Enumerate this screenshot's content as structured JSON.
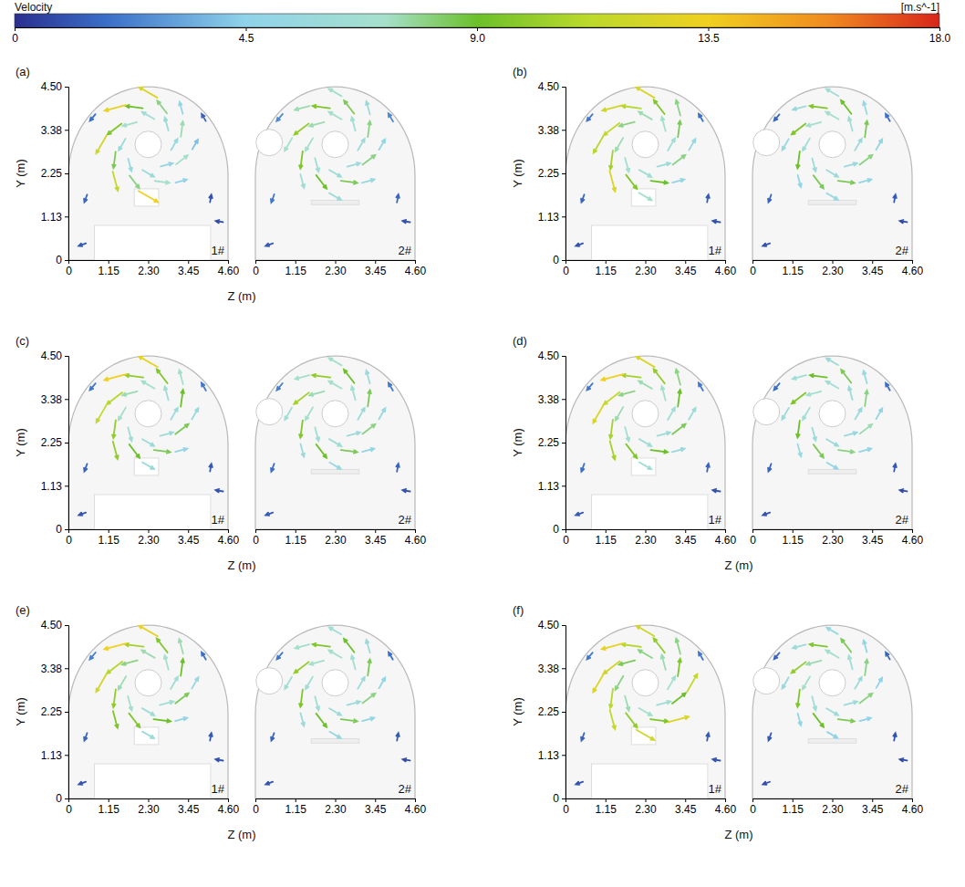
{
  "chart_data": {
    "type": "vector_field",
    "colorbar": {
      "title": "Velocity",
      "unit": "[m.s^-1]",
      "range": [
        0,
        18
      ],
      "ticks": [
        0,
        4.5,
        {
          "value": 9,
          "label": "9.0"
        },
        13.5,
        {
          "value": 18,
          "label": "18.0"
        }
      ]
    },
    "ylabel": "Y (m)",
    "xlim": [
      0,
      4.6
    ],
    "xticks": [
      0,
      1.15,
      {
        "value": 2.3,
        "label": "2.30"
      },
      3.45,
      {
        "value": 4.6,
        "label": "4.60"
      }
    ],
    "ylim": [
      0,
      4.5
    ],
    "yticks": [
      0,
      1.13,
      2.25,
      3.38,
      {
        "value": 4.5,
        "label": "4.50"
      }
    ],
    "z": [
      3.05,
      2.83,
      2.3,
      1.77,
      1.55,
      1.77,
      2.3,
      2.83,
      3.27,
      2.7,
      1.9,
      1.33,
      1.33,
      1.9,
      2.7,
      3.27,
      3.65,
      3.25,
      2.3,
      1.35,
      0.95,
      1.35,
      2.3,
      3.25,
      0.5,
      4.1,
      4.35,
      0.4,
      3.9,
      0.7
    ],
    "y": [
      3.0,
      3.53,
      3.75,
      3.53,
      3.0,
      2.47,
      2.25,
      2.47,
      3.4,
      3.97,
      3.97,
      3.4,
      2.6,
      2.03,
      2.03,
      2.6,
      3.0,
      3.95,
      4.35,
      3.95,
      3.0,
      2.05,
      1.65,
      2.05,
      1.6,
      1.6,
      1.0,
      0.4,
      3.7,
      3.7
    ],
    "direction": [
      60,
      105,
      150,
      195,
      240,
      285,
      330,
      15,
      82.5,
      127.5,
      172.5,
      217.5,
      262.5,
      307.5,
      352.5,
      37.5,
      60,
      105,
      150,
      195,
      240,
      285,
      330,
      15,
      250,
      80,
      170,
      200,
      120,
      230
    ],
    "panels": [
      {
        "label": "(a)",
        "xlabel": "Z (m)",
        "plots": [
          {
            "label": "1#",
            "speed": [
              5.5,
              6.0,
              6.5,
              7.0,
              6.0,
              5.5,
              6.0,
              5.0,
              7.5,
              8.0,
              9.0,
              9.5,
              8.5,
              8.0,
              7.0,
              7.0,
              4.0,
              5.0,
              12.5,
              13.0,
              12.0,
              11.5,
              13.5,
              4.5,
              1.5,
              1.0,
              0.8,
              1.2,
              1.5,
              1.8
            ]
          },
          {
            "label": "2#",
            "speed": [
              6.0,
              6.5,
              7.0,
              7.5,
              7.0,
              6.5,
              6.0,
              6.0,
              8.0,
              8.5,
              9.5,
              10.0,
              9.5,
              9.0,
              8.5,
              8.0,
              5.0,
              6.0,
              7.0,
              7.5,
              7.0,
              6.5,
              6.0,
              5.5,
              2.0,
              1.5,
              1.0,
              1.2,
              2.5,
              2.5
            ]
          }
        ]
      },
      {
        "label": "(b)",
        "plots": [
          {
            "label": "1#",
            "speed": [
              6.5,
              7.0,
              7.5,
              8.0,
              7.5,
              7.0,
              6.5,
              6.0,
              8.5,
              9.5,
              11.0,
              11.5,
              10.5,
              9.5,
              9.0,
              8.0,
              5.5,
              8.0,
              12.5,
              12.0,
              11.0,
              12.5,
              7.0,
              5.0,
              1.5,
              1.2,
              1.0,
              1.0,
              1.8,
              2.0
            ]
          },
          {
            "label": "2#",
            "speed": [
              6.0,
              6.5,
              7.0,
              7.0,
              6.5,
              6.0,
              6.0,
              5.5,
              8.5,
              9.0,
              9.5,
              9.5,
              9.0,
              8.5,
              8.5,
              8.0,
              5.0,
              5.5,
              6.5,
              6.0,
              5.5,
              5.0,
              5.5,
              5.0,
              1.5,
              1.2,
              0.8,
              1.0,
              1.8,
              1.5
            ]
          }
        ]
      },
      {
        "label": "(c)",
        "xlabel": "Z (m)",
        "plots": [
          {
            "label": "1#",
            "speed": [
              6.0,
              6.5,
              7.0,
              7.5,
              7.0,
              6.5,
              6.0,
              6.0,
              9.0,
              9.5,
              10.0,
              11.0,
              10.0,
              9.0,
              8.5,
              8.5,
              5.5,
              7.0,
              13.0,
              13.5,
              11.5,
              10.0,
              6.0,
              5.0,
              1.5,
              1.2,
              1.0,
              1.0,
              2.0,
              2.0
            ]
          },
          {
            "label": "2#",
            "speed": [
              6.0,
              6.5,
              7.0,
              7.5,
              7.0,
              6.5,
              6.5,
              6.0,
              8.5,
              9.0,
              10.0,
              10.5,
              9.5,
              9.0,
              8.5,
              8.0,
              5.5,
              6.0,
              7.0,
              7.0,
              6.5,
              6.0,
              5.5,
              5.0,
              1.8,
              1.5,
              1.0,
              1.2,
              2.0,
              2.2
            ]
          }
        ]
      },
      {
        "label": "(d)",
        "xlabel": "Z (m)",
        "plots": [
          {
            "label": "1#",
            "speed": [
              6.5,
              7.0,
              7.5,
              8.0,
              7.5,
              7.0,
              6.5,
              6.0,
              9.0,
              10.0,
              10.5,
              11.5,
              10.5,
              9.5,
              9.0,
              8.5,
              6.0,
              8.0,
              12.5,
              13.5,
              12.5,
              10.5,
              6.5,
              5.5,
              1.8,
              1.5,
              1.0,
              1.2,
              2.0,
              2.0
            ]
          },
          {
            "label": "2#",
            "speed": [
              5.5,
              6.0,
              6.5,
              7.0,
              6.5,
              6.0,
              6.0,
              5.5,
              8.0,
              8.5,
              9.0,
              9.5,
              9.0,
              8.5,
              8.0,
              7.5,
              5.0,
              5.5,
              6.0,
              6.5,
              6.0,
              5.5,
              5.0,
              5.0,
              1.5,
              1.2,
              0.8,
              1.0,
              1.8,
              1.8
            ]
          }
        ]
      },
      {
        "label": "(e)",
        "xlabel": "Z (m)",
        "plots": [
          {
            "label": "1#",
            "speed": [
              6.5,
              7.0,
              7.5,
              8.0,
              7.5,
              7.0,
              6.5,
              6.5,
              9.0,
              9.5,
              10.5,
              11.0,
              10.0,
              9.5,
              9.0,
              8.5,
              5.5,
              7.5,
              13.0,
              13.5,
              12.0,
              9.5,
              6.0,
              5.0,
              1.5,
              1.2,
              1.0,
              1.0,
              1.8,
              2.2
            ]
          },
          {
            "label": "2#",
            "speed": [
              6.0,
              6.5,
              7.0,
              7.0,
              6.5,
              6.5,
              6.0,
              6.0,
              8.5,
              9.0,
              9.5,
              10.0,
              9.5,
              9.0,
              8.5,
              8.0,
              5.0,
              6.0,
              6.5,
              7.0,
              6.5,
              6.0,
              5.5,
              5.0,
              1.5,
              1.2,
              0.8,
              1.0,
              1.8,
              2.0
            ]
          }
        ]
      },
      {
        "label": "(f)",
        "xlabel": "Z (m)",
        "plots": [
          {
            "label": "1#",
            "speed": [
              7.0,
              7.5,
              8.0,
              8.5,
              8.0,
              7.5,
              7.0,
              6.5,
              9.5,
              10.0,
              11.0,
              12.0,
              11.0,
              10.0,
              9.5,
              9.0,
              11.5,
              8.0,
              12.0,
              13.0,
              12.5,
              11.5,
              12.0,
              12.5,
              1.5,
              1.2,
              1.0,
              1.0,
              2.0,
              2.0
            ]
          },
          {
            "label": "2#",
            "speed": [
              6.0,
              6.5,
              7.0,
              7.5,
              7.0,
              6.5,
              6.0,
              6.0,
              8.0,
              8.5,
              9.5,
              10.0,
              9.5,
              9.0,
              8.5,
              8.0,
              4.5,
              5.0,
              5.5,
              6.0,
              5.5,
              5.0,
              4.5,
              4.5,
              1.2,
              1.0,
              0.8,
              0.8,
              1.5,
              1.5
            ]
          }
        ]
      }
    ]
  }
}
